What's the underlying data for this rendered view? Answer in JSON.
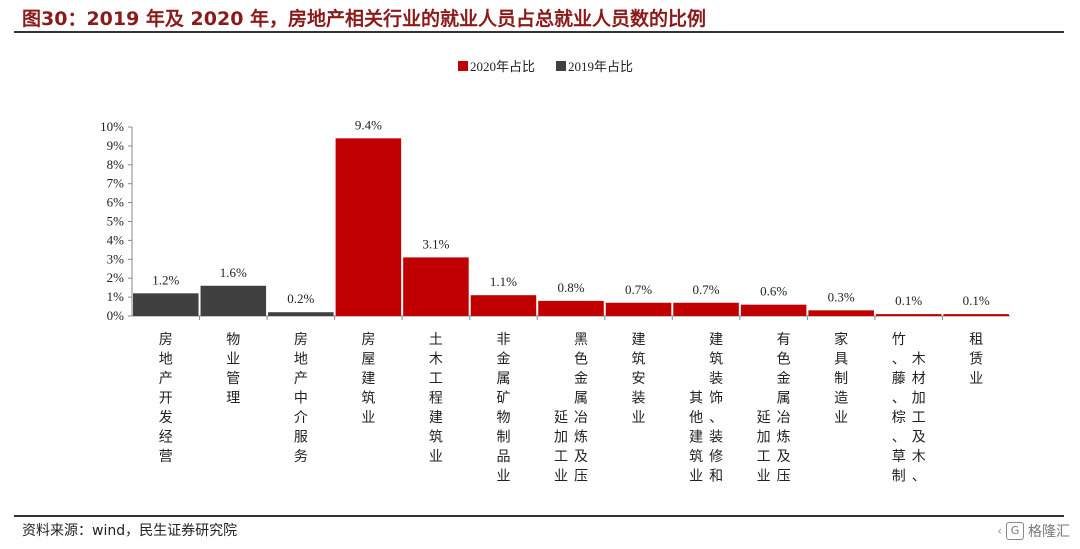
{
  "header": {
    "title": "图30：2019 年及 2020 年，房地产相关行业的就业人员占总就业人员数的比例"
  },
  "footer": {
    "source": "资料来源：wind，民生证券研究院",
    "watermark": "格隆汇",
    "watermark_logo": "G"
  },
  "chart_data": {
    "type": "bar",
    "title": "",
    "xlabel": "",
    "ylabel": "",
    "ylim": [
      0,
      10
    ],
    "yticks": [
      "0%",
      "1%",
      "2%",
      "3%",
      "4%",
      "5%",
      "6%",
      "7%",
      "8%",
      "9%",
      "10%"
    ],
    "grid": false,
    "legend_position": "top",
    "categories": [
      "房地产开发经营",
      "物业管理",
      "房地产中介服务",
      "房屋建筑业",
      "土木工程建筑业",
      "非金属矿物制品业",
      "黑色金属冶炼及压延加工业",
      "建筑安装业",
      "建筑装饰、装修和其他建筑业",
      "有色金属冶炼及压延加工业",
      "家具制造业",
      "木材加工及木、竹、藤、棕、草制",
      "租赁业"
    ],
    "category_label_columns": [
      [
        "房地产开发经营"
      ],
      [
        "物业管理"
      ],
      [
        "房地产中介服务"
      ],
      [
        "房屋建筑业"
      ],
      [
        "土木工程建筑业"
      ],
      [
        "非金属矿物制品业"
      ],
      [
        "延加工业",
        "黑色金属冶炼及压"
      ],
      [
        "建筑安装业"
      ],
      [
        "其他建筑业",
        "建筑装饰、装修和"
      ],
      [
        "延加工业",
        "有色金属冶炼及压"
      ],
      [
        "家具制造业"
      ],
      [
        "竹、藤、棕、草制",
        "木材加工及木、"
      ],
      [
        "租赁业"
      ]
    ],
    "series": [
      {
        "name": "2020年占比",
        "color": "#c00000",
        "values": [
          null,
          null,
          null,
          9.4,
          3.1,
          1.1,
          0.8,
          0.7,
          0.7,
          0.6,
          0.3,
          0.1,
          0.1
        ]
      },
      {
        "name": "2019年占比",
        "color": "#404040",
        "values": [
          1.2,
          1.6,
          0.2,
          null,
          null,
          null,
          null,
          null,
          null,
          null,
          null,
          null,
          null
        ]
      }
    ],
    "data_labels": [
      "1.2%",
      "1.6%",
      "0.2%",
      "9.4%",
      "3.1%",
      "1.1%",
      "0.8%",
      "0.7%",
      "0.7%",
      "0.6%",
      "0.3%",
      "0.1%",
      "0.1%"
    ]
  }
}
